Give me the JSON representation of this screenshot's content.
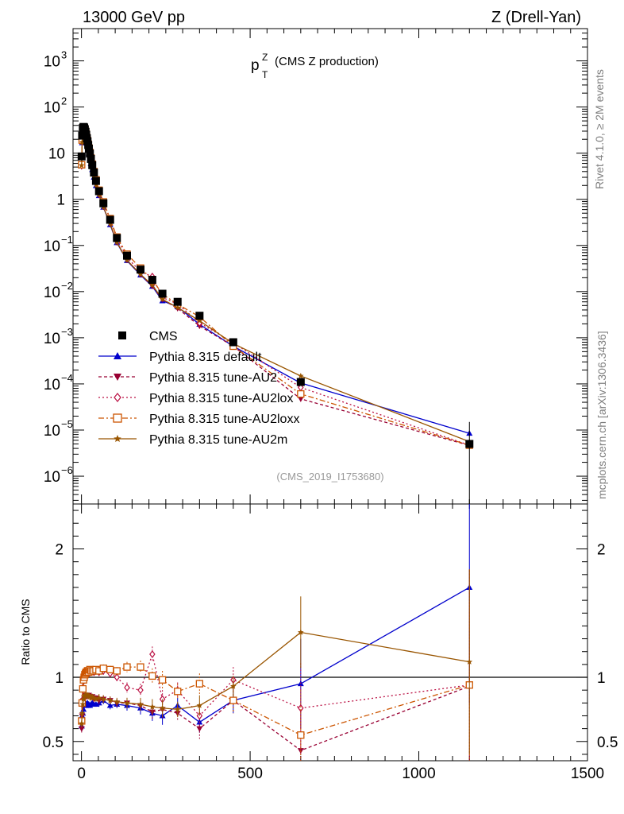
{
  "header": {
    "left": "13000 GeV pp",
    "right": "Z (Drell-Yan)"
  },
  "side": {
    "rivet": "Rivet 4.1.0, ≥ 2M events",
    "mcplots": "mcplots.cern.ch [arXiv:1306.3436]"
  },
  "plot_title": {
    "main": "p",
    "sup": "Z",
    "sub": "T",
    "rest": "(CMS Z production)"
  },
  "analysis_label": "(CMS_2019_I1753680)",
  "ratio_ylabel": "Ratio to CMS",
  "colors": {
    "data": "#000000",
    "default": "#0000cc",
    "au2": "#990033",
    "au2lox": "#bb1144",
    "au2loxx": "#cc5500",
    "au2m": "#995500"
  },
  "chart_data": [
    {
      "type": "scatter",
      "name": "main",
      "yscale": "log",
      "xlim": [
        -25,
        1500
      ],
      "ylim": [
        2.5e-07,
        5000
      ],
      "ytick_labels": [
        {
          "v": 1e-06,
          "base": "10",
          "exp": "−6"
        },
        {
          "v": 1e-05,
          "base": "10",
          "exp": "−5"
        },
        {
          "v": 0.0001,
          "base": "10",
          "exp": "−4"
        },
        {
          "v": 0.001,
          "base": "10",
          "exp": "−3"
        },
        {
          "v": 0.01,
          "base": "10",
          "exp": "−2"
        },
        {
          "v": 0.1,
          "base": "10",
          "exp": "−1"
        },
        {
          "v": 1,
          "base": "1",
          "exp": ""
        },
        {
          "v": 10,
          "base": "10",
          "exp": ""
        },
        {
          "v": 100,
          "base": "10",
          "exp": "2"
        },
        {
          "v": 1000,
          "base": "10",
          "exp": "3"
        }
      ],
      "x": [
        0.5,
        2,
        4,
        6,
        8,
        10,
        12,
        14,
        16,
        18,
        20,
        22,
        25,
        28,
        32,
        37,
        43,
        52,
        65,
        85,
        105,
        135,
        175,
        210,
        240,
        285,
        350,
        450,
        650,
        1150
      ],
      "cms": [
        8.5,
        24,
        35,
        37,
        36,
        33,
        29,
        25,
        21,
        18,
        15,
        12.5,
        9.8,
        7.5,
        5.5,
        3.8,
        2.5,
        1.5,
        0.82,
        0.36,
        0.145,
        0.06,
        0.03,
        0.018,
        0.009,
        0.006,
        0.003,
        0.0008,
        0.00011,
        5e-06
      ],
      "series": [
        {
          "name": "CMS",
          "key": "cms",
          "style": "square",
          "dash": "none"
        },
        {
          "name": "Pythia 8.315 default",
          "key": "default",
          "style": "triangle-up",
          "dash": "none"
        },
        {
          "name": "Pythia 8.315 tune-AU2",
          "key": "au2",
          "style": "triangle-down",
          "dash": "4,3"
        },
        {
          "name": "Pythia 8.315 tune-AU2lox",
          "key": "au2lox",
          "style": "diamond",
          "dash": "2,3"
        },
        {
          "name": "Pythia 8.315 tune-AU2loxx",
          "key": "au2loxx",
          "style": "open-square",
          "dash": "7,3,2,3"
        },
        {
          "name": "Pythia 8.315 tune-AU2m",
          "key": "au2m",
          "style": "star",
          "dash": "none"
        }
      ]
    },
    {
      "type": "line",
      "name": "ratio",
      "ylabel": "Ratio to CMS",
      "xlim": [
        -25,
        1500
      ],
      "ylim": [
        0.35,
        2.35
      ],
      "xtick_labels": [
        0,
        500,
        1000,
        1500
      ],
      "ytick_labels": [
        0.5,
        1,
        2
      ],
      "ratios": {
        "default": [
          0.62,
          0.7,
          0.72,
          0.75,
          0.78,
          0.79,
          0.8,
          0.79,
          0.78,
          0.8,
          0.78,
          0.79,
          0.78,
          0.79,
          0.8,
          0.79,
          0.79,
          0.8,
          0.82,
          0.78,
          0.79,
          0.78,
          0.76,
          0.72,
          0.7,
          0.78,
          0.65,
          0.82,
          0.95,
          1.7
        ],
        "au2": [
          0.6,
          0.7,
          0.78,
          0.82,
          0.84,
          0.85,
          0.86,
          0.86,
          0.85,
          0.86,
          0.85,
          0.86,
          0.85,
          0.84,
          0.85,
          0.83,
          0.84,
          0.82,
          0.83,
          0.82,
          0.8,
          0.8,
          0.78,
          0.73,
          0.75,
          0.72,
          0.6,
          0.82,
          0.43,
          0.93
        ],
        "au2lox": [
          0.65,
          0.82,
          0.92,
          0.97,
          1.0,
          1.02,
          1.03,
          1.03,
          1.02,
          1.03,
          1.04,
          1.03,
          1.04,
          1.04,
          1.05,
          1.04,
          1.05,
          1.04,
          1.05,
          1.03,
          1.0,
          0.92,
          0.9,
          1.18,
          0.83,
          0.9,
          0.7,
          0.98,
          0.76,
          0.94
        ],
        "au2loxx": [
          0.66,
          0.8,
          0.91,
          0.98,
          1.0,
          1.02,
          1.03,
          1.04,
          1.04,
          1.05,
          1.05,
          1.04,
          1.06,
          1.05,
          1.05,
          1.05,
          1.06,
          1.05,
          1.07,
          1.06,
          1.05,
          1.08,
          1.08,
          1.01,
          0.98,
          0.89,
          0.95,
          0.82,
          0.55,
          0.94
        ],
        "au2m": [
          0.64,
          0.72,
          0.79,
          0.83,
          0.85,
          0.86,
          0.86,
          0.86,
          0.86,
          0.86,
          0.85,
          0.86,
          0.85,
          0.84,
          0.85,
          0.84,
          0.83,
          0.84,
          0.83,
          0.82,
          0.81,
          0.8,
          0.79,
          0.77,
          0.76,
          0.75,
          0.78,
          0.93,
          1.35,
          1.12
        ]
      },
      "ratio_errors": [
        0.03,
        0.02,
        0.02,
        0.02,
        0.02,
        0.02,
        0.02,
        0.02,
        0.02,
        0.02,
        0.02,
        0.02,
        0.02,
        0.02,
        0.02,
        0.02,
        0.02,
        0.03,
        0.03,
        0.03,
        0.03,
        0.04,
        0.05,
        0.06,
        0.07,
        0.06,
        0.08,
        0.1,
        0.35,
        0.9
      ]
    }
  ]
}
